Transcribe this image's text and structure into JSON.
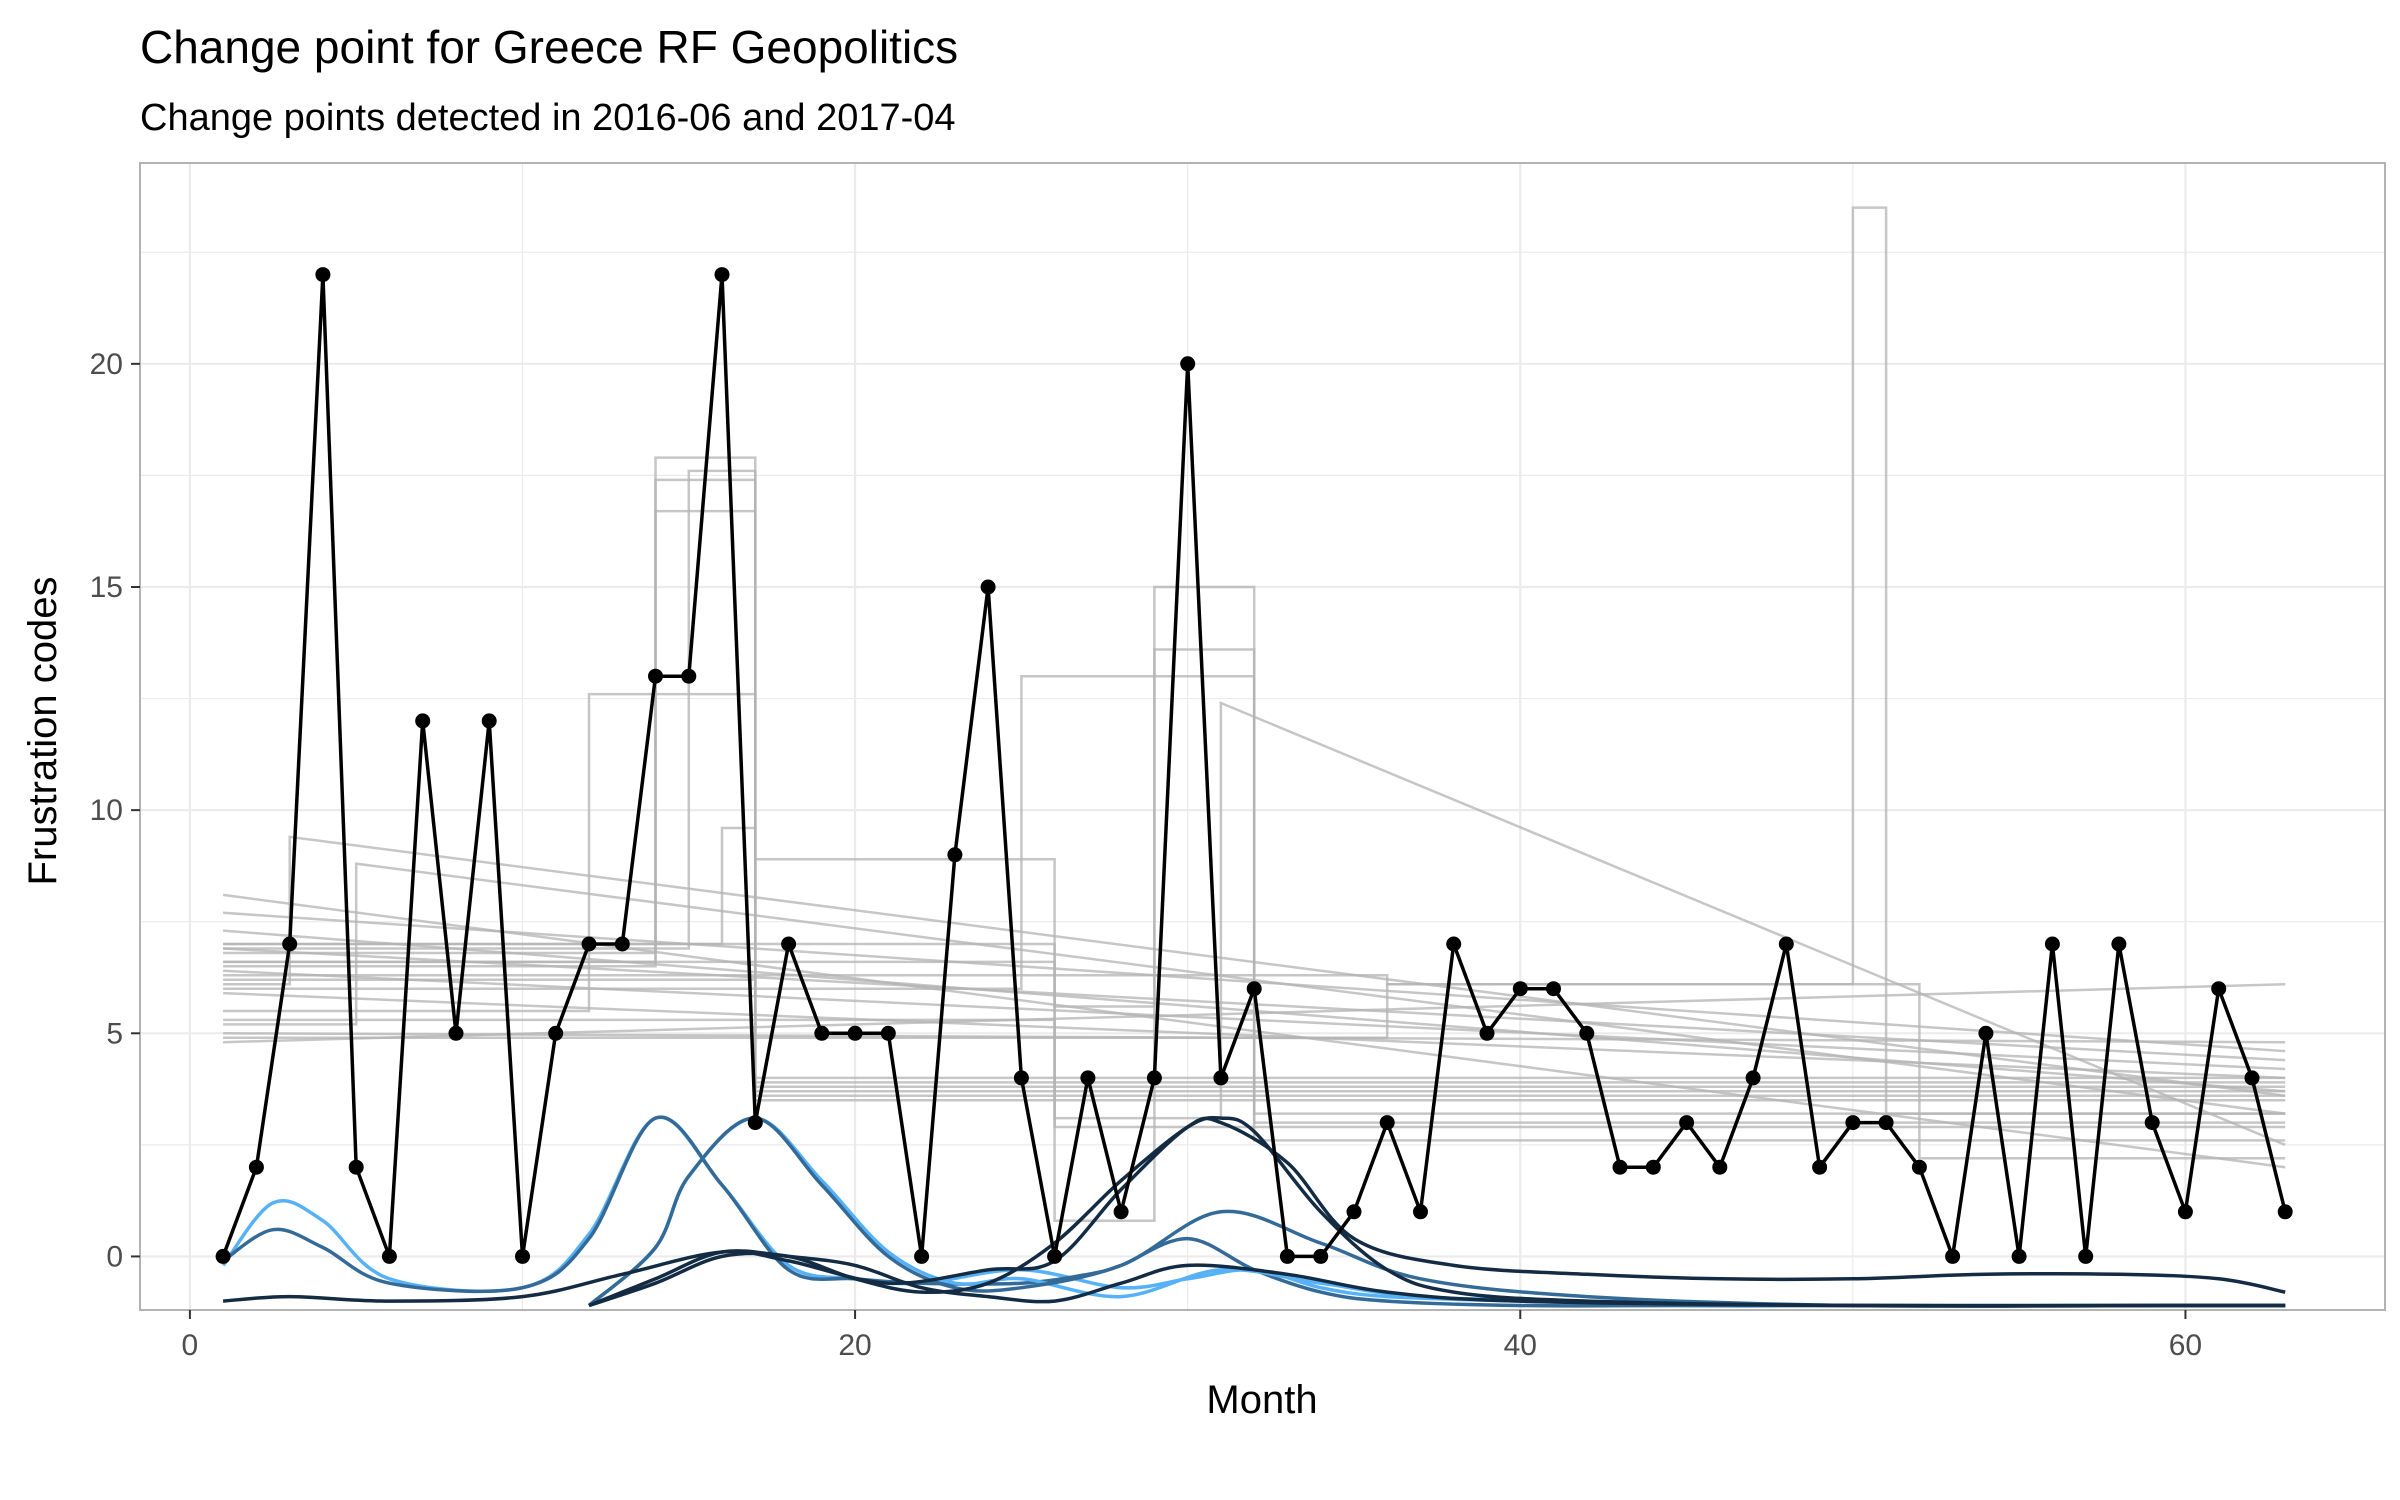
{
  "chart_data": {
    "type": "line",
    "title": "Change point for Greece RF Geopolitics",
    "subtitle": "Change points detected in 2016-06 and 2017-04",
    "xlabel": "Month",
    "ylabel": "Frustration codes",
    "xlim": [
      -1.5,
      66
    ],
    "ylim": [
      -1.2,
      24.5
    ],
    "x_ticks": [
      0,
      20,
      40,
      60
    ],
    "y_ticks": [
      0,
      5,
      10,
      15,
      20
    ],
    "grid": true,
    "legend": "none",
    "colors": {
      "observed": "#000000",
      "changepoint": "#b3b3b3",
      "dark_blue": "#132b43",
      "mid_blue": "#336a98",
      "light_blue": "#56b1f7",
      "grid": "#ebebeb",
      "panel_border": "#b3b3b3"
    },
    "observed": {
      "x": [
        1,
        2,
        3,
        4,
        5,
        6,
        7,
        8,
        9,
        10,
        11,
        12,
        13,
        14,
        15,
        16,
        17,
        18,
        19,
        20,
        21,
        22,
        23,
        24,
        25,
        26,
        27,
        28,
        29,
        30,
        31,
        32,
        33,
        34,
        35,
        36,
        37,
        38,
        39,
        40,
        41,
        42,
        43,
        44,
        45,
        46,
        47,
        48,
        49,
        50,
        51,
        52,
        53,
        54,
        55,
        56,
        57,
        58,
        59,
        60,
        61,
        62,
        63
      ],
      "y": [
        0,
        2,
        7,
        22,
        2,
        0,
        12,
        5,
        12,
        0,
        5,
        7,
        7,
        13,
        13,
        22,
        3,
        7,
        5,
        5,
        5,
        0,
        9,
        15,
        4,
        0,
        4,
        1,
        4,
        20,
        4,
        6,
        0,
        0,
        1,
        3,
        1,
        7,
        5,
        6,
        6,
        5,
        2,
        2,
        3,
        2,
        4,
        7,
        2,
        3,
        3,
        2,
        0,
        5,
        0,
        7,
        0,
        7,
        3,
        1,
        6,
        4,
        1
      ]
    },
    "changepoint_fits": [
      {
        "x": [
          1,
          3,
          3,
          63
        ],
        "y": [
          6.1,
          6.1,
          9.4,
          3.6
        ]
      },
      {
        "x": [
          1,
          5,
          5,
          63
        ],
        "y": [
          5.2,
          5.2,
          8.8,
          3.2
        ]
      },
      {
        "x": [
          1,
          12,
          12,
          17,
          17,
          63
        ],
        "y": [
          5.5,
          5.5,
          12.6,
          12.6,
          3.6,
          3.6
        ]
      },
      {
        "x": [
          1,
          14,
          14,
          17,
          17,
          63
        ],
        "y": [
          6.8,
          6.8,
          16.7,
          16.7,
          3.7,
          3.7
        ]
      },
      {
        "x": [
          1,
          14,
          14,
          17,
          17,
          63
        ],
        "y": [
          6.6,
          6.6,
          17.4,
          17.4,
          4.0,
          4.0
        ]
      },
      {
        "x": [
          1,
          15,
          15,
          17,
          17,
          63
        ],
        "y": [
          6.9,
          6.9,
          17.6,
          17.6,
          3.8,
          3.8
        ]
      },
      {
        "x": [
          1,
          14,
          14,
          17,
          17,
          63
        ],
        "y": [
          6.5,
          6.5,
          17.9,
          17.9,
          3.5,
          3.5
        ]
      },
      {
        "x": [
          1,
          16,
          16,
          17,
          17,
          63
        ],
        "y": [
          7.0,
          7.0,
          9.6,
          9.6,
          3.9,
          3.9
        ]
      },
      {
        "x": [
          1,
          17,
          17,
          26,
          26,
          63
        ],
        "y": [
          6.2,
          6.2,
          8.9,
          8.9,
          2.9,
          2.9
        ]
      },
      {
        "x": [
          1,
          26,
          26,
          29,
          29,
          32,
          32,
          63
        ],
        "y": [
          7.0,
          7.0,
          5.6,
          5.6,
          15.0,
          15.0,
          3.0,
          3.0
        ]
      },
      {
        "x": [
          1,
          26,
          26,
          29,
          29,
          32,
          32,
          63
        ],
        "y": [
          6.6,
          6.6,
          0.8,
          0.8,
          13.6,
          13.6,
          2.6,
          2.6
        ]
      },
      {
        "x": [
          1,
          25,
          25,
          32,
          32,
          63
        ],
        "y": [
          6.0,
          6.0,
          13.0,
          13.0,
          3.2,
          3.2
        ]
      },
      {
        "x": [
          1,
          26,
          26,
          31,
          31,
          63
        ],
        "y": [
          5.3,
          5.3,
          3.1,
          3.1,
          12.4,
          2.5
        ]
      },
      {
        "x": [
          1,
          36,
          36,
          50,
          50,
          51,
          51,
          63
        ],
        "y": [
          6.3,
          6.3,
          6.1,
          6.1,
          23.5,
          23.5,
          3.2,
          3.2
        ]
      },
      {
        "x": [
          1,
          36,
          36,
          52,
          52,
          63
        ],
        "y": [
          4.9,
          4.9,
          6.1,
          6.1,
          2.2,
          2.2
        ]
      },
      {
        "x": [
          1,
          63
        ],
        "y": [
          7.7,
          4.6
        ]
      },
      {
        "x": [
          1,
          63
        ],
        "y": [
          6.9,
          4.4
        ]
      },
      {
        "x": [
          1,
          63
        ],
        "y": [
          6.4,
          4.2
        ]
      },
      {
        "x": [
          1,
          63
        ],
        "y": [
          5.9,
          4.0
        ]
      },
      {
        "x": [
          1,
          63
        ],
        "y": [
          5.0,
          4.8
        ]
      },
      {
        "x": [
          1,
          63
        ],
        "y": [
          4.8,
          6.1
        ]
      },
      {
        "x": [
          1,
          63
        ],
        "y": [
          8.1,
          2.0
        ]
      },
      {
        "x": [
          1,
          63
        ],
        "y": [
          7.3,
          3.7
        ]
      }
    ],
    "smooth_series": [
      {
        "color": "light_blue",
        "x": [
          1,
          2.5,
          4,
          6,
          10,
          12,
          14,
          16,
          18,
          20,
          22,
          25,
          28,
          30,
          32,
          34,
          36,
          40,
          45,
          50,
          55,
          60,
          63
        ],
        "y": [
          -0.2,
          1.2,
          0.8,
          -0.5,
          -0.7,
          0.5,
          3.1,
          1.6,
          -0.2,
          -0.5,
          -0.6,
          -0.3,
          -0.7,
          -0.5,
          -0.3,
          -0.7,
          -0.9,
          -1.0,
          -1.1,
          -1.1,
          -1.1,
          -1.1,
          -1.1
        ]
      },
      {
        "color": "mid_blue",
        "x": [
          1,
          2.5,
          4,
          6,
          10,
          12,
          14,
          16,
          18,
          20,
          22,
          25,
          27,
          28,
          30,
          32,
          34,
          36,
          40,
          45,
          50,
          55,
          60,
          63
        ],
        "y": [
          -0.1,
          0.6,
          0.2,
          -0.6,
          -0.7,
          0.4,
          3.1,
          1.6,
          -0.3,
          -0.5,
          -0.6,
          -0.6,
          -0.4,
          -0.2,
          0.4,
          -0.3,
          -0.8,
          -1.0,
          -1.1,
          -1.1,
          -1.1,
          -1.1,
          -1.1,
          -1.1
        ]
      },
      {
        "color": "light_blue",
        "x": [
          12,
          14,
          15,
          17,
          19,
          21,
          23,
          25,
          28,
          31,
          34,
          37,
          42,
          50,
          60,
          63
        ],
        "y": [
          -1.1,
          0.2,
          1.8,
          3.1,
          1.7,
          0.1,
          -0.6,
          -0.5,
          -0.9,
          -0.3,
          -0.6,
          -0.9,
          -1.0,
          -1.1,
          -1.1,
          -1.1
        ]
      },
      {
        "color": "mid_blue",
        "x": [
          12,
          14,
          15,
          17,
          19,
          21,
          23,
          25,
          28,
          31,
          34,
          37,
          42,
          50,
          60,
          63
        ],
        "y": [
          -1.1,
          0.2,
          1.8,
          3.1,
          1.6,
          0.0,
          -0.7,
          -0.7,
          -0.2,
          1.0,
          0.3,
          -0.5,
          -0.9,
          -1.1,
          -1.1,
          -1.1
        ]
      },
      {
        "color": "dark_blue",
        "x": [
          12,
          14,
          16,
          18,
          20,
          22,
          24,
          26,
          28,
          30,
          31,
          32,
          34,
          36,
          38,
          42,
          50,
          60,
          63
        ],
        "y": [
          -1.1,
          -0.6,
          0.0,
          0.0,
          -0.5,
          -0.8,
          -0.6,
          0.3,
          1.7,
          2.9,
          3.1,
          2.8,
          1.0,
          -0.3,
          -0.8,
          -1.0,
          -1.1,
          -1.1,
          -1.1
        ]
      },
      {
        "color": "dark_blue",
        "x": [
          1,
          3,
          6,
          10,
          13,
          16,
          18,
          21,
          24,
          26,
          28,
          30,
          31,
          33,
          35,
          38,
          42,
          46,
          50,
          54,
          58,
          61,
          63
        ],
        "y": [
          -1.0,
          -0.9,
          -1.0,
          -0.9,
          -0.4,
          0.1,
          -0.1,
          -0.6,
          -0.3,
          -0.1,
          1.5,
          2.9,
          3.0,
          2.1,
          0.4,
          -0.2,
          -0.4,
          -0.5,
          -0.5,
          -0.4,
          -0.4,
          -0.5,
          -0.8
        ]
      },
      {
        "color": "dark_blue",
        "x": [
          12,
          14,
          16,
          18,
          20,
          22,
          24,
          26,
          28,
          30,
          33,
          36,
          40,
          50,
          60,
          63
        ],
        "y": [
          -1.1,
          -0.5,
          0.1,
          0.0,
          -0.2,
          -0.7,
          -0.9,
          -1.0,
          -0.6,
          -0.2,
          -0.4,
          -0.8,
          -1.0,
          -1.1,
          -1.1,
          -1.1
        ]
      }
    ]
  }
}
